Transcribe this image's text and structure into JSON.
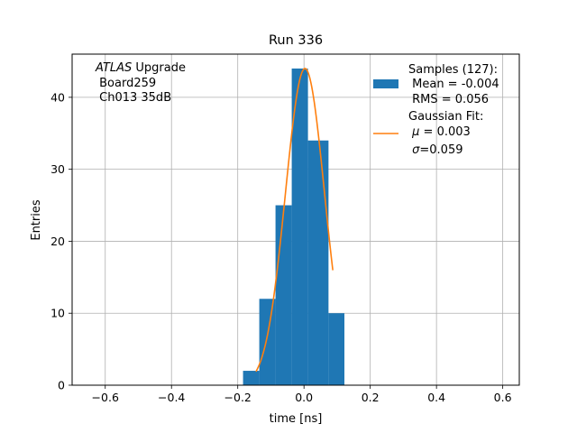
{
  "chart_data": {
    "type": "bar",
    "title": "Run 336",
    "xlabel": "time [ns]",
    "ylabel": "Entries",
    "xlim": [
      -0.7,
      0.65
    ],
    "ylim": [
      0,
      46
    ],
    "xticks": [
      -0.6,
      -0.4,
      -0.2,
      0.0,
      0.2,
      0.4,
      0.6
    ],
    "xtick_labels": [
      "−0.6",
      "−0.4",
      "−0.2",
      "0.0",
      "0.2",
      "0.4",
      "0.6"
    ],
    "yticks": [
      0,
      10,
      20,
      30,
      40
    ],
    "ytick_labels": [
      "0",
      "10",
      "20",
      "30",
      "40"
    ],
    "grid": true,
    "bins": [
      {
        "x0": -0.184,
        "x1": -0.135,
        "count": 2
      },
      {
        "x0": -0.135,
        "x1": -0.086,
        "count": 12
      },
      {
        "x0": -0.086,
        "x1": -0.037,
        "count": 25
      },
      {
        "x0": -0.037,
        "x1": 0.012,
        "count": 44
      },
      {
        "x0": 0.012,
        "x1": 0.074,
        "count": 34
      },
      {
        "x0": 0.074,
        "x1": 0.122,
        "count": 10
      }
    ],
    "fit": {
      "mu": 0.003,
      "sigma": 0.059,
      "amplitude": 44,
      "x_range": [
        -0.145,
        0.087
      ]
    },
    "histogram_color": "#1f77b4",
    "fit_color": "#ff7f0e",
    "annotation": {
      "italic": "ATLAS",
      "line1_rest": " Upgrade",
      "line2": " Board259",
      "line3": " Ch013 35dB"
    },
    "legend": {
      "placement": "top-right",
      "samples_line1": "Samples (127):",
      "samples_line2": " Mean = -0.004",
      "samples_line3": " RMS = 0.056",
      "fit_line1": "Gaussian Fit:",
      "fit_line2_symbol": "μ",
      "fit_line2_rest": " = 0.003",
      "fit_line3_symbol": "σ",
      "fit_line3_rest": "=0.059"
    }
  }
}
